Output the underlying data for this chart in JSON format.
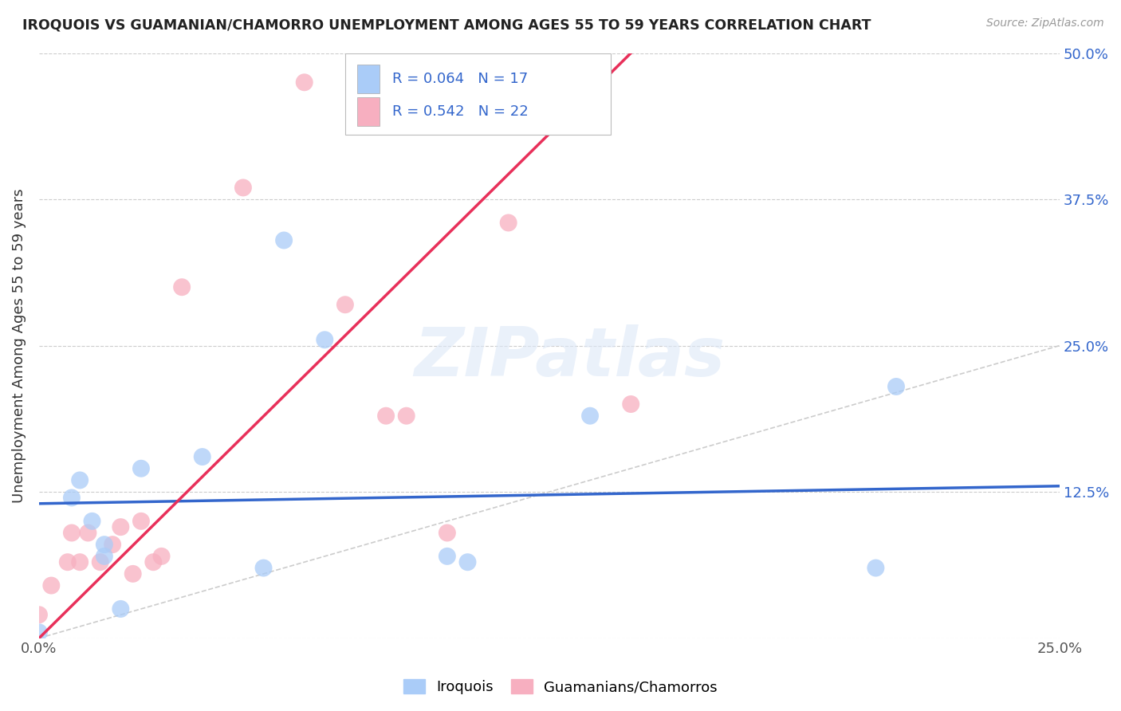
{
  "title": "IROQUOIS VS GUAMANIAN/CHAMORRO UNEMPLOYMENT AMONG AGES 55 TO 59 YEARS CORRELATION CHART",
  "source": "Source: ZipAtlas.com",
  "ylabel": "Unemployment Among Ages 55 to 59 years",
  "xlim": [
    0.0,
    0.25
  ],
  "ylim": [
    0.0,
    0.5
  ],
  "xticks": [
    0.0,
    0.05,
    0.1,
    0.15,
    0.2,
    0.25
  ],
  "yticks": [
    0.0,
    0.125,
    0.25,
    0.375,
    0.5
  ],
  "xticklabels": [
    "0.0%",
    "",
    "",
    "",
    "",
    "25.0%"
  ],
  "yticklabels_right": [
    "",
    "12.5%",
    "25.0%",
    "37.5%",
    "50.0%"
  ],
  "iroquois_color": "#aaccf8",
  "guamanian_color": "#f7afc0",
  "iroquois_line_color": "#3366cc",
  "guamanian_line_color": "#e8305a",
  "watermark_text": "ZIPatlas",
  "legend_R1": "R = 0.064",
  "legend_N1": "N = 17",
  "legend_R2": "R = 0.542",
  "legend_N2": "N = 22",
  "iroquois_x": [
    0.0,
    0.008,
    0.01,
    0.013,
    0.016,
    0.016,
    0.02,
    0.025,
    0.04,
    0.055,
    0.06,
    0.07,
    0.1,
    0.105,
    0.135,
    0.205,
    0.21
  ],
  "iroquois_y": [
    0.005,
    0.12,
    0.135,
    0.1,
    0.07,
    0.08,
    0.025,
    0.145,
    0.155,
    0.06,
    0.34,
    0.255,
    0.07,
    0.065,
    0.19,
    0.06,
    0.215
  ],
  "guamanian_x": [
    0.0,
    0.003,
    0.007,
    0.008,
    0.01,
    0.012,
    0.015,
    0.018,
    0.02,
    0.023,
    0.025,
    0.028,
    0.03,
    0.035,
    0.05,
    0.065,
    0.075,
    0.085,
    0.09,
    0.1,
    0.115,
    0.145
  ],
  "guamanian_y": [
    0.02,
    0.045,
    0.065,
    0.09,
    0.065,
    0.09,
    0.065,
    0.08,
    0.095,
    0.055,
    0.1,
    0.065,
    0.07,
    0.3,
    0.385,
    0.475,
    0.285,
    0.19,
    0.19,
    0.09,
    0.355,
    0.2
  ],
  "iroquois_line_x": [
    0.0,
    0.25
  ],
  "iroquois_line_y": [
    0.115,
    0.13
  ],
  "guamanian_line_x": [
    0.0,
    0.145
  ],
  "guamanian_line_y": [
    0.0,
    0.5
  ],
  "diag_line_x": [
    0.0,
    0.25
  ],
  "diag_line_y": [
    0.0,
    0.25
  ],
  "background_color": "#ffffff",
  "grid_color": "#cccccc"
}
